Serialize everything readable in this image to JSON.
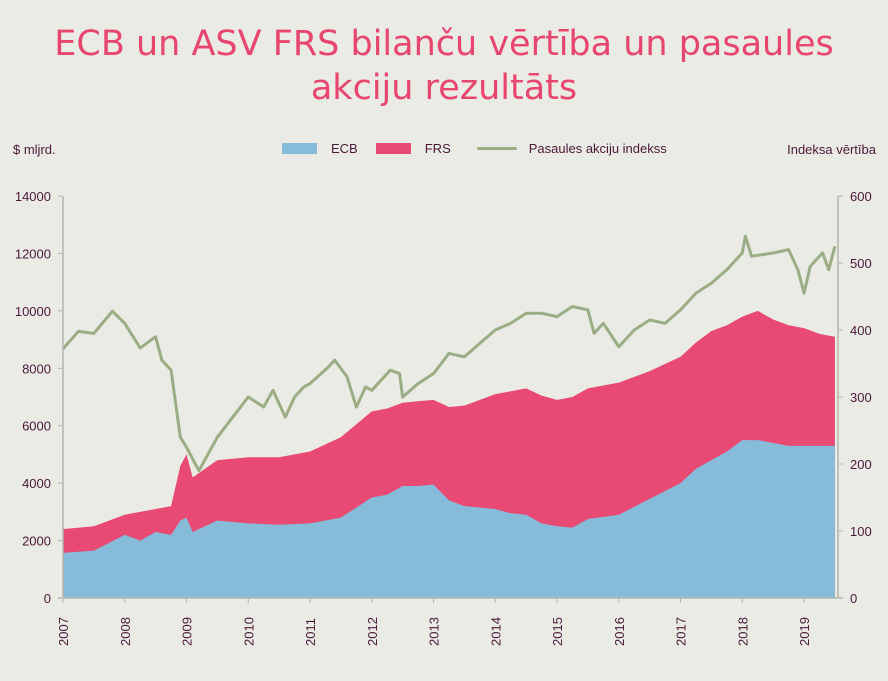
{
  "chart_data": {
    "type": "area",
    "title": "ECB un ASV FRS bilanču vērtība un pasaules akciju rezultāts",
    "ylabel": "$ mljrd.",
    "y2label": "Indeksa vērtība",
    "ylim": [
      0,
      14000
    ],
    "y2lim": [
      0,
      600
    ],
    "yticks": [
      0,
      2000,
      4000,
      6000,
      8000,
      10000,
      12000,
      14000
    ],
    "y2ticks": [
      0,
      100,
      200,
      300,
      400,
      500,
      600
    ],
    "xticks": [
      "2007",
      "2008",
      "2009",
      "2010",
      "2011",
      "2012",
      "2013",
      "2014",
      "2015",
      "2016",
      "2017",
      "2018",
      "2019"
    ],
    "xlim": [
      2007,
      2019.55
    ],
    "grid": false,
    "legend_placement": "top",
    "colors": {
      "ECB": "#86bcd9",
      "FRS": "#e84a74",
      "index": "#9bad84"
    },
    "stacked_series": [
      {
        "name": "ECB",
        "x": [
          2007,
          2007.5,
          2008,
          2008.25,
          2008.5,
          2008.75,
          2008.9,
          2009,
          2009.1,
          2009.5,
          2010,
          2010.5,
          2011,
          2011.5,
          2012,
          2012.25,
          2012.5,
          2012.75,
          2013,
          2013.25,
          2013.5,
          2014,
          2014.25,
          2014.5,
          2014.75,
          2015,
          2015.25,
          2015.5,
          2016,
          2016.5,
          2017,
          2017.25,
          2017.5,
          2017.75,
          2018,
          2018.25,
          2018.5,
          2018.75,
          2019,
          2019.25,
          2019.5
        ],
        "values": [
          1570,
          1650,
          2200,
          2000,
          2300,
          2200,
          2700,
          2800,
          2300,
          2700,
          2600,
          2550,
          2600,
          2800,
          3500,
          3600,
          3900,
          3900,
          3950,
          3400,
          3200,
          3100,
          2950,
          2900,
          2600,
          2500,
          2450,
          2750,
          2900,
          3450,
          4000,
          4500,
          4800,
          5100,
          5500,
          5500,
          5400,
          5300,
          5300,
          5300,
          5300
        ]
      },
      {
        "name": "FRS",
        "x": [
          2007,
          2007.5,
          2008,
          2008.25,
          2008.5,
          2008.75,
          2008.9,
          2009,
          2009.1,
          2009.5,
          2010,
          2010.5,
          2011,
          2011.5,
          2012,
          2012.25,
          2012.5,
          2012.75,
          2013,
          2013.25,
          2013.5,
          2014,
          2014.25,
          2014.5,
          2014.75,
          2015,
          2015.25,
          2015.5,
          2016,
          2016.5,
          2017,
          2017.25,
          2017.5,
          2017.75,
          2018,
          2018.25,
          2018.5,
          2018.75,
          2019,
          2019.25,
          2019.5
        ],
        "values": [
          830,
          850,
          700,
          1000,
          800,
          1000,
          1900,
          2200,
          1900,
          2100,
          2300,
          2350,
          2500,
          2800,
          3000,
          3000,
          2900,
          2950,
          2950,
          3250,
          3500,
          4000,
          4250,
          4400,
          4450,
          4400,
          4550,
          4550,
          4600,
          4450,
          4400,
          4400,
          4500,
          4400,
          4300,
          4500,
          4300,
          4200,
          4100,
          3900,
          3800
        ]
      }
    ],
    "line_series": {
      "name": "Pasaules akciju indekss",
      "x": [
        2007,
        2007.25,
        2007.5,
        2007.8,
        2008,
        2008.25,
        2008.5,
        2008.6,
        2008.75,
        2008.9,
        2009,
        2009.2,
        2009.5,
        2009.75,
        2010,
        2010.25,
        2010.4,
        2010.6,
        2010.75,
        2010.9,
        2011,
        2011.3,
        2011.4,
        2011.6,
        2011.75,
        2011.9,
        2012,
        2012.3,
        2012.45,
        2012.5,
        2012.75,
        2013,
        2013.25,
        2013.5,
        2013.75,
        2014,
        2014.25,
        2014.5,
        2014.75,
        2015,
        2015.25,
        2015.5,
        2015.6,
        2015.75,
        2016,
        2016.25,
        2016.5,
        2016.75,
        2017,
        2017.25,
        2017.5,
        2017.75,
        2018,
        2018.05,
        2018.15,
        2018.5,
        2018.75,
        2018.9,
        2019,
        2019.1,
        2019.3,
        2019.4,
        2019.5
      ],
      "values": [
        372,
        398,
        395,
        428,
        410,
        373,
        390,
        355,
        340,
        240,
        225,
        190,
        240,
        270,
        300,
        285,
        310,
        270,
        300,
        315,
        320,
        345,
        355,
        330,
        285,
        315,
        310,
        340,
        335,
        300,
        320,
        335,
        365,
        360,
        380,
        400,
        410,
        425,
        425,
        420,
        435,
        430,
        395,
        410,
        375,
        400,
        415,
        410,
        430,
        455,
        470,
        490,
        515,
        540,
        510,
        515,
        520,
        490,
        455,
        495,
        515,
        490,
        525
      ]
    }
  },
  "legend": [
    {
      "label": "ECB"
    },
    {
      "label": "FRS"
    },
    {
      "label": "Pasaules akciju indekss"
    }
  ]
}
